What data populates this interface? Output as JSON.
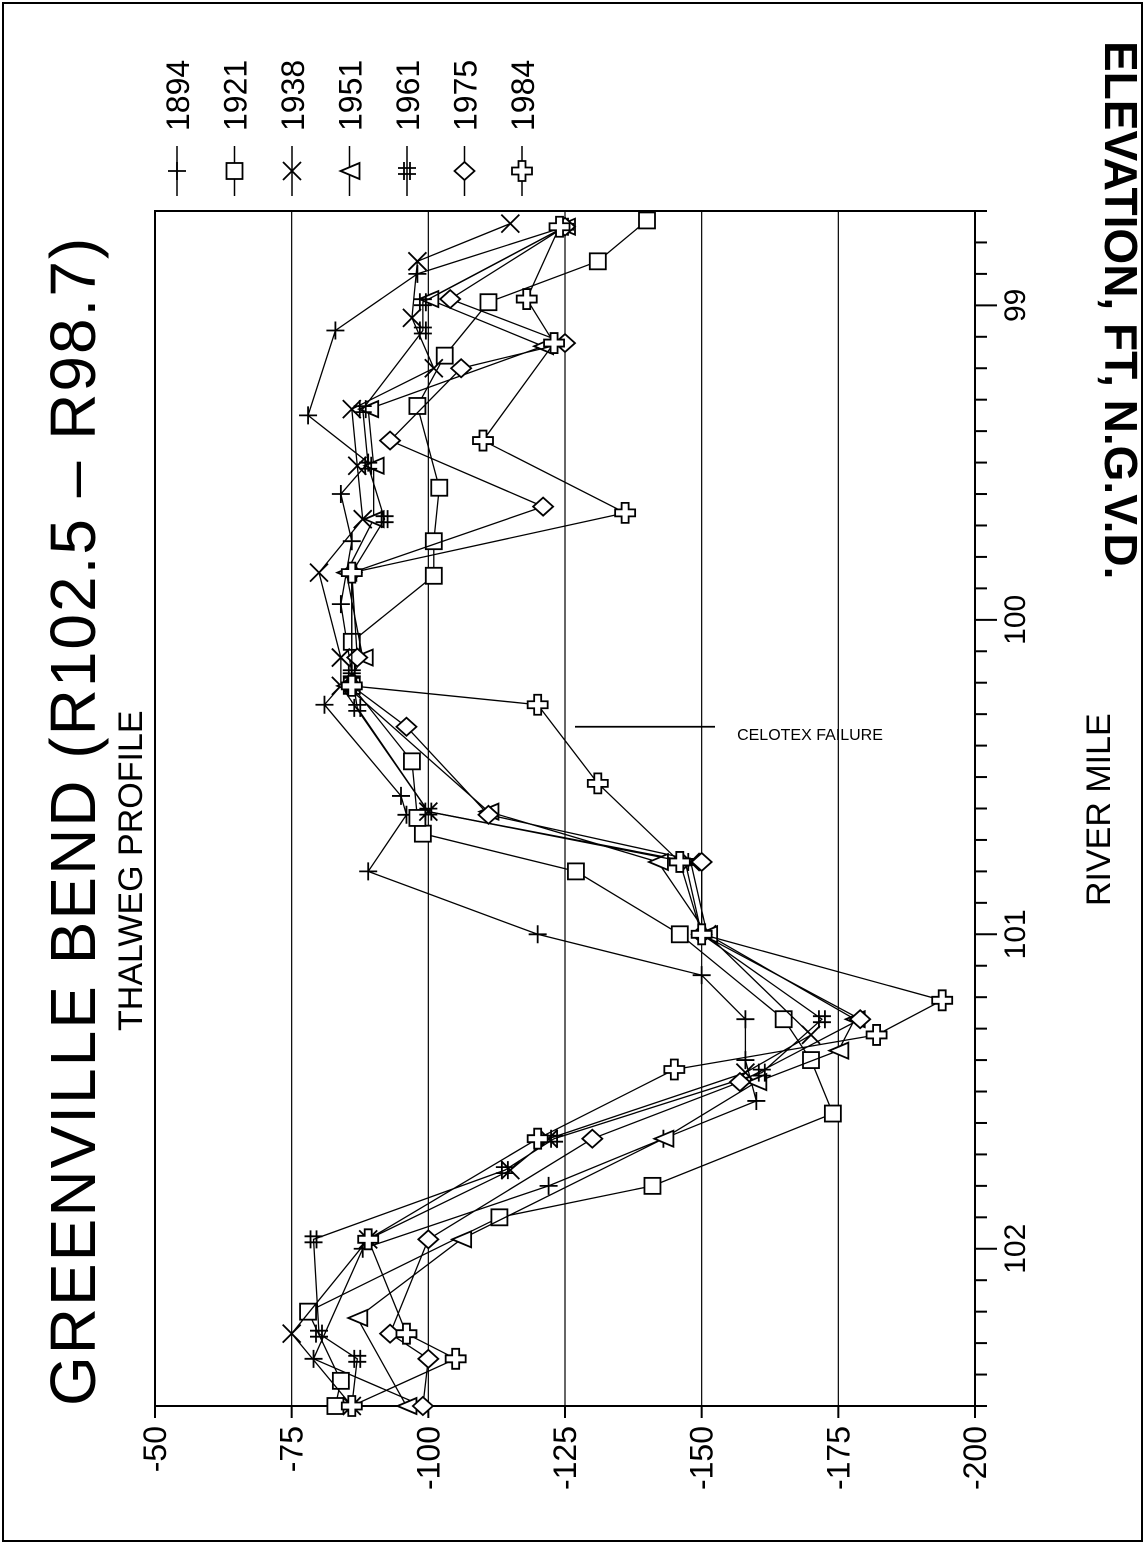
{
  "chart_data": {
    "type": "line",
    "title": "GREENVILLE BEND (R102.5 – R98.7)",
    "subtitle": "THALWEG PROFILE",
    "xlabel": "RIVER MILE",
    "ylabel": "ELEVATION, FT, N.G.V.D.",
    "xlim": [
      102.5,
      98.7
    ],
    "ylim": [
      -50,
      -200
    ],
    "x_tick_labels": [
      {
        "value": 102,
        "label": "102"
      },
      {
        "value": 101,
        "label": "101"
      },
      {
        "value": 100,
        "label": "100"
      },
      {
        "value": 99,
        "label": "99"
      }
    ],
    "y_tick_labels": [
      "-50",
      "-75",
      "-100",
      "-125",
      "-150",
      "-175",
      "-200"
    ],
    "y_ticks": [
      -50,
      -75,
      -100,
      -125,
      -150,
      -175,
      -200
    ],
    "grid": "horizontal lines at -75, -100, -125, -150, -175",
    "legend_position": "right",
    "annotations": [
      {
        "text": "CELOTEX FAILURE",
        "x": 100.34
      }
    ],
    "series": [
      {
        "name": "1894",
        "marker": "plus",
        "points": [
          [
            102.5,
            -99
          ],
          [
            102.35,
            -79
          ],
          [
            102.0,
            -88
          ],
          [
            101.8,
            -122
          ],
          [
            101.65,
            -143
          ],
          [
            101.53,
            -160
          ],
          [
            101.4,
            -158
          ],
          [
            101.27,
            -158
          ],
          [
            101.13,
            -150
          ],
          [
            101.0,
            -120
          ],
          [
            100.8,
            -89
          ],
          [
            100.62,
            -96
          ],
          [
            100.56,
            -95
          ],
          [
            100.27,
            -81
          ],
          [
            100.17,
            -86
          ],
          [
            99.95,
            -84
          ],
          [
            99.75,
            -86
          ],
          [
            99.6,
            -84
          ],
          [
            99.5,
            -89
          ],
          [
            99.35,
            -78
          ],
          [
            99.08,
            -83
          ],
          [
            98.9,
            -98
          ],
          [
            98.75,
            -125
          ]
        ]
      },
      {
        "name": "1921",
        "marker": "square",
        "points": [
          [
            102.5,
            -83
          ],
          [
            102.42,
            -84
          ],
          [
            102.2,
            -78
          ],
          [
            101.9,
            -113
          ],
          [
            101.8,
            -141
          ],
          [
            101.57,
            -174
          ],
          [
            101.4,
            -170
          ],
          [
            101.27,
            -165
          ],
          [
            101.0,
            -146
          ],
          [
            100.8,
            -127
          ],
          [
            100.68,
            -99
          ],
          [
            100.63,
            -98
          ],
          [
            100.45,
            -97
          ],
          [
            100.21,
            -86
          ],
          [
            100.07,
            -86
          ],
          [
            99.86,
            -101
          ],
          [
            99.75,
            -101
          ],
          [
            99.58,
            -102
          ],
          [
            99.32,
            -98
          ],
          [
            99.16,
            -103
          ],
          [
            98.99,
            -111
          ],
          [
            98.86,
            -131
          ],
          [
            98.73,
            -140
          ]
        ]
      },
      {
        "name": "1938",
        "marker": "cross",
        "points": [
          [
            102.5,
            -86
          ],
          [
            102.27,
            -75
          ],
          [
            101.97,
            -89
          ],
          [
            101.75,
            -115
          ],
          [
            101.65,
            -122
          ],
          [
            101.44,
            -158
          ],
          [
            101.32,
            -170
          ],
          [
            101.0,
            -151
          ],
          [
            100.77,
            -148
          ],
          [
            100.61,
            -100
          ],
          [
            100.21,
            -84
          ],
          [
            100.12,
            -84
          ],
          [
            99.85,
            -80
          ],
          [
            99.68,
            -88
          ],
          [
            99.51,
            -87
          ],
          [
            99.33,
            -86
          ],
          [
            99.2,
            -101
          ],
          [
            99.04,
            -97
          ],
          [
            98.86,
            -98
          ],
          [
            98.74,
            -115
          ]
        ]
      },
      {
        "name": "1951",
        "marker": "triangle-right",
        "points": [
          [
            102.5,
            -96
          ],
          [
            102.22,
            -87
          ],
          [
            101.97,
            -106
          ],
          [
            101.65,
            -143
          ],
          [
            101.47,
            -160
          ],
          [
            101.37,
            -175
          ],
          [
            101.27,
            -178
          ],
          [
            101.0,
            -151
          ],
          [
            100.77,
            -142
          ],
          [
            100.61,
            -111
          ],
          [
            100.21,
            -85
          ],
          [
            100.12,
            -88
          ],
          [
            99.85,
            -85
          ],
          [
            99.68,
            -90
          ],
          [
            99.51,
            -90
          ],
          [
            99.33,
            -89
          ],
          [
            99.13,
            -121
          ],
          [
            98.98,
            -100
          ],
          [
            98.75,
            -125
          ]
        ]
      },
      {
        "name": "1961",
        "marker": "hash",
        "points": [
          [
            102.5,
            -86
          ],
          [
            102.35,
            -87
          ],
          [
            102.27,
            -80
          ],
          [
            101.97,
            -79
          ],
          [
            101.75,
            -114
          ],
          [
            101.65,
            -123
          ],
          [
            101.44,
            -161
          ],
          [
            101.27,
            -172
          ],
          [
            101.0,
            -150
          ],
          [
            100.77,
            -147
          ],
          [
            100.61,
            -100
          ],
          [
            100.28,
            -87
          ],
          [
            100.17,
            -86
          ],
          [
            99.85,
            -86
          ],
          [
            99.68,
            -92
          ],
          [
            99.51,
            -89
          ],
          [
            99.33,
            -88
          ],
          [
            99.08,
            -99
          ],
          [
            98.99,
            -99
          ],
          [
            98.75,
            -125
          ]
        ]
      },
      {
        "name": "1975",
        "marker": "diamond",
        "points": [
          [
            102.5,
            -99
          ],
          [
            102.35,
            -100
          ],
          [
            102.27,
            -93
          ],
          [
            101.97,
            -100
          ],
          [
            101.65,
            -130
          ],
          [
            101.47,
            -157
          ],
          [
            101.27,
            -179
          ],
          [
            101.0,
            -150
          ],
          [
            100.77,
            -150
          ],
          [
            100.62,
            -111
          ],
          [
            100.34,
            -96
          ],
          [
            100.21,
            -86
          ],
          [
            100.12,
            -87
          ],
          [
            99.85,
            -86
          ],
          [
            99.64,
            -121
          ],
          [
            99.43,
            -93
          ],
          [
            99.2,
            -106
          ],
          [
            99.12,
            -125
          ],
          [
            98.98,
            -104
          ],
          [
            98.75,
            -125
          ]
        ]
      },
      {
        "name": "1984",
        "marker": "bold-plus",
        "points": [
          [
            102.5,
            -86
          ],
          [
            102.35,
            -105
          ],
          [
            102.27,
            -96
          ],
          [
            101.97,
            -89
          ],
          [
            101.65,
            -120
          ],
          [
            101.43,
            -145
          ],
          [
            101.32,
            -182
          ],
          [
            101.21,
            -194
          ],
          [
            101.0,
            -150
          ],
          [
            100.77,
            -146
          ],
          [
            100.52,
            -131
          ],
          [
            100.27,
            -120
          ],
          [
            100.21,
            -86
          ],
          [
            99.85,
            -86
          ],
          [
            99.66,
            -136
          ],
          [
            99.43,
            -110
          ],
          [
            99.12,
            -123
          ],
          [
            98.98,
            -118
          ],
          [
            98.75,
            -124
          ]
        ]
      }
    ]
  }
}
